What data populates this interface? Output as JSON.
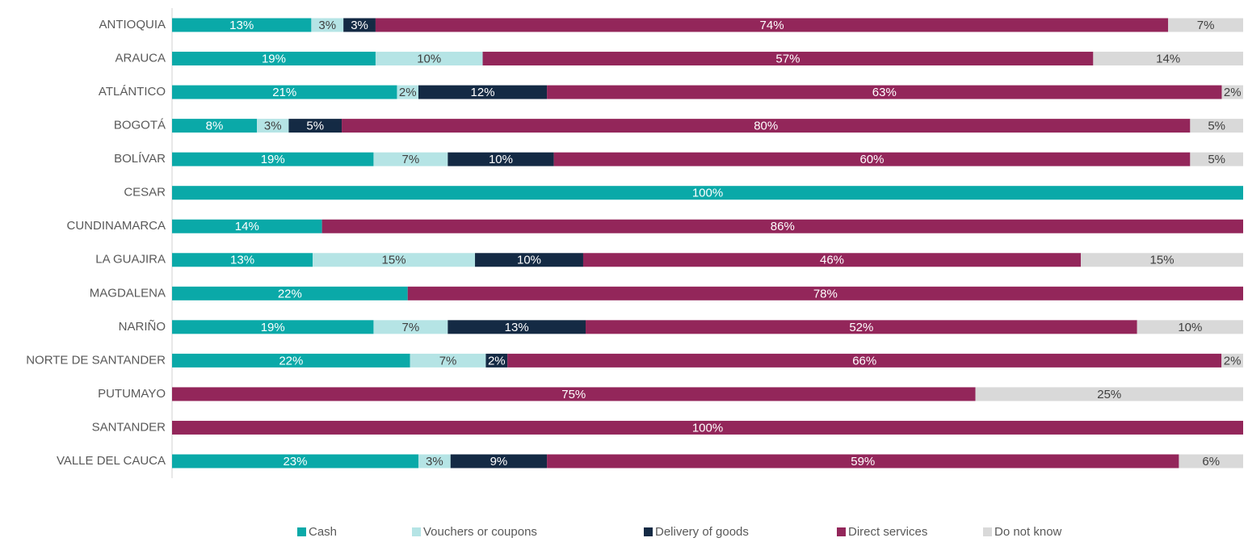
{
  "chart_data": {
    "type": "stacked-bar-horizontal",
    "categories": [
      "ANTIOQUIA",
      "ARAUCA",
      "ATLÁNTICO",
      "BOGOTÁ",
      "BOLÍVAR",
      "CESAR",
      "CUNDINAMARCA",
      "LA GUAJIRA",
      "MAGDALENA",
      "NARIÑO",
      "NORTE DE SANTANDER",
      "PUTUMAYO",
      "SANTANDER",
      "VALLE DEL CAUCA"
    ],
    "series": [
      {
        "name": "Cash",
        "color": "#0aa9a8",
        "values": [
          13,
          19,
          21,
          8,
          19,
          100,
          14,
          13,
          22,
          19,
          22,
          0,
          0,
          23
        ],
        "value_labels": [
          "13%",
          "19%",
          "21%",
          "8%",
          "19%",
          "100%",
          "14%",
          "13%",
          "22%",
          "19%",
          "22%",
          null,
          null,
          "23%"
        ]
      },
      {
        "name": "Vouchers or coupons",
        "color": "#b5e4e5",
        "values": [
          3,
          10,
          2,
          3,
          7,
          0,
          0,
          15,
          0,
          7,
          7,
          0,
          0,
          3
        ],
        "value_labels": [
          "3%",
          "10%",
          "2%",
          "3%",
          "7%",
          null,
          null,
          "15%",
          null,
          "7%",
          "7%",
          null,
          null,
          "3%"
        ]
      },
      {
        "name": "Delivery of goods",
        "color": "#142a44",
        "values": [
          3,
          0,
          12,
          5,
          10,
          0,
          0,
          10,
          0,
          13,
          2,
          0,
          0,
          9
        ],
        "value_labels": [
          "3%",
          null,
          "12%",
          "5%",
          "10%",
          null,
          null,
          "10%",
          null,
          "13%",
          "2%",
          null,
          null,
          "9%"
        ]
      },
      {
        "name": "Direct services",
        "color": "#93265a",
        "values": [
          74,
          57,
          63,
          80,
          60,
          0,
          86,
          46,
          78,
          52,
          66,
          75,
          100,
          59
        ],
        "value_labels": [
          "74%",
          "57%",
          "63%",
          "80%",
          "60%",
          null,
          "86%",
          "46%",
          "78%",
          "52%",
          "66%",
          "75%",
          "100%",
          "59%"
        ]
      },
      {
        "name": "Do not know",
        "color": "#d9d9d9",
        "values": [
          7,
          14,
          2,
          5,
          5,
          0,
          0,
          15,
          0,
          10,
          2,
          25,
          0,
          6
        ],
        "value_labels": [
          "7%",
          "14%",
          "2%",
          "5%",
          "5%",
          null,
          null,
          "15%",
          null,
          "10%",
          "2%",
          "25%",
          null,
          "6%"
        ]
      }
    ],
    "legend": "bottom"
  }
}
